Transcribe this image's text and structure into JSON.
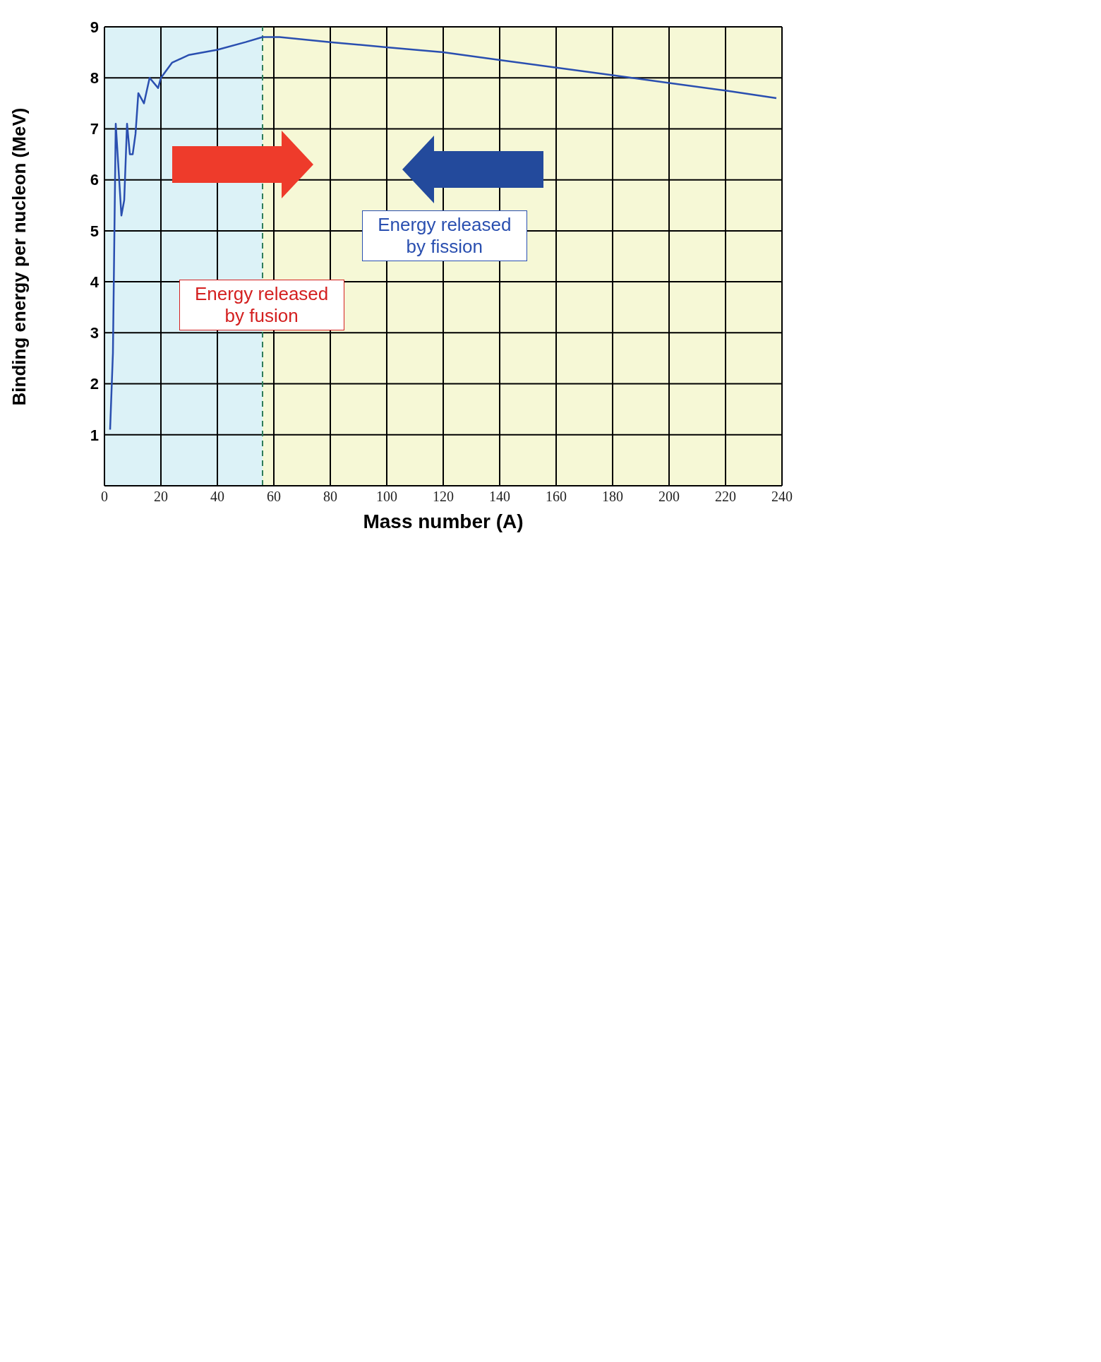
{
  "chart_data": {
    "type": "line",
    "xlabel": "Mass number (A)",
    "ylabel": "Binding energy per nucleon (MeV)",
    "series": [
      {
        "color": "#2a4fb0",
        "x": [
          2,
          3,
          4,
          6,
          7,
          8,
          9,
          10,
          11,
          12,
          14,
          16,
          19,
          20,
          24,
          30,
          40,
          50,
          56,
          62,
          80,
          100,
          120,
          140,
          160,
          180,
          200,
          220,
          238
        ],
        "values": [
          1.1,
          2.6,
          7.1,
          5.3,
          5.6,
          7.1,
          6.5,
          6.5,
          6.9,
          7.7,
          7.5,
          8.0,
          7.8,
          8.0,
          8.3,
          8.45,
          8.55,
          8.7,
          8.8,
          8.8,
          8.7,
          8.6,
          8.5,
          8.35,
          8.2,
          8.05,
          7.9,
          7.75,
          7.6
        ]
      }
    ],
    "xlim": [
      0,
      240
    ],
    "xticks": [
      0,
      20,
      40,
      60,
      80,
      100,
      120,
      140,
      160,
      180,
      200,
      220,
      240
    ],
    "ylim": [
      0,
      9
    ],
    "yticks": [
      1,
      2,
      3,
      4,
      5,
      6,
      7,
      8,
      9
    ],
    "grid": true,
    "marker": "none",
    "line_style": "solid",
    "bands": [
      {
        "axis": "x",
        "from": 0,
        "to": 56,
        "color": "#dcf2f7"
      },
      {
        "axis": "x",
        "from": 56,
        "to": 240,
        "color": "#f6f8d6"
      }
    ],
    "ref_lines": [
      {
        "axis": "x",
        "value": 56,
        "color": "#2e7d5a",
        "line_style": "dashed"
      }
    ],
    "annotations": [
      "Energy released by fusion",
      "Energy released by fission"
    ]
  }
}
